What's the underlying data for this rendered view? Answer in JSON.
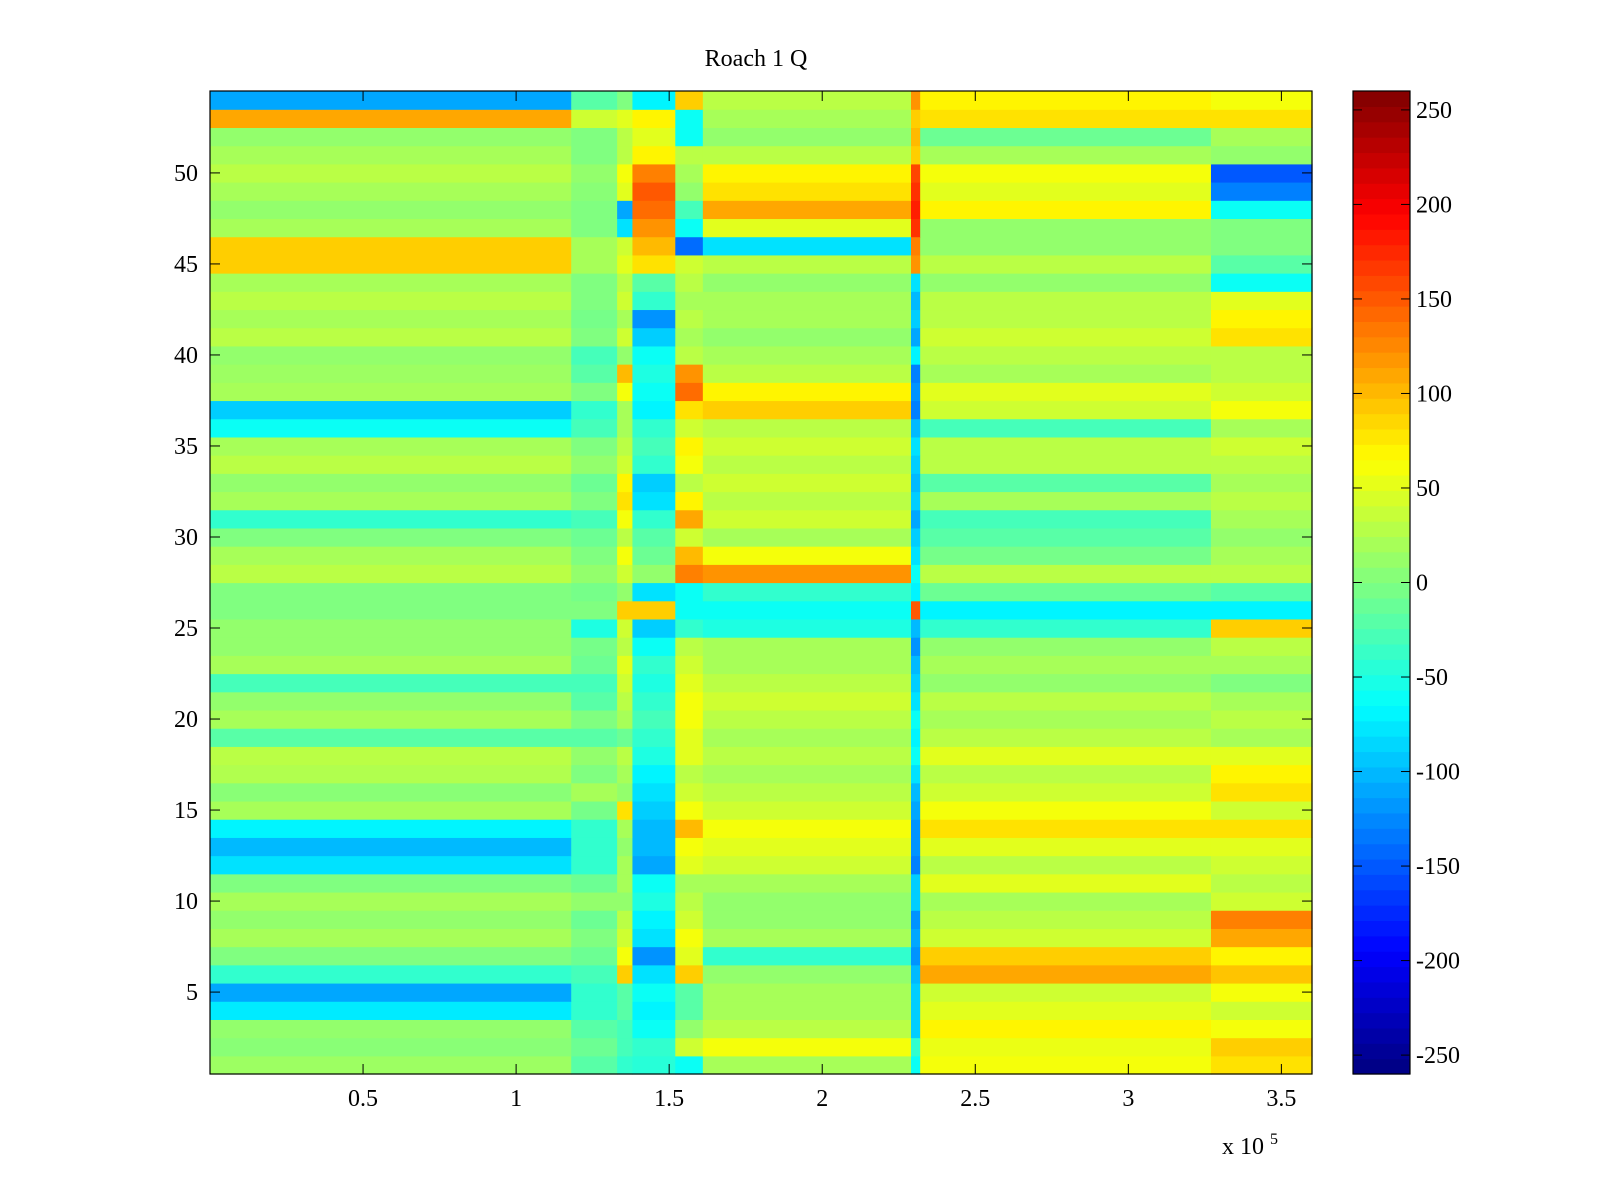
{
  "chart_data": {
    "type": "heatmap",
    "title": "Roach 1 Q",
    "xlabel": "",
    "ylabel": "",
    "colormap": "jet",
    "xlim": [
      0,
      360000
    ],
    "ylim": [
      0.5,
      54.5
    ],
    "rows": 54,
    "x_exponent_label": "x 10",
    "x_exponent_power": "5",
    "x_ticks": [
      {
        "value": 50000,
        "label": "0.5"
      },
      {
        "value": 100000,
        "label": "1"
      },
      {
        "value": 150000,
        "label": "1.5"
      },
      {
        "value": 200000,
        "label": "2"
      },
      {
        "value": 250000,
        "label": "2.5"
      },
      {
        "value": 300000,
        "label": "3"
      },
      {
        "value": 350000,
        "label": "3.5"
      }
    ],
    "y_ticks": [
      {
        "value": 5,
        "label": "5"
      },
      {
        "value": 10,
        "label": "10"
      },
      {
        "value": 15,
        "label": "15"
      },
      {
        "value": 20,
        "label": "20"
      },
      {
        "value": 25,
        "label": "25"
      },
      {
        "value": 30,
        "label": "30"
      },
      {
        "value": 35,
        "label": "35"
      },
      {
        "value": 40,
        "label": "40"
      },
      {
        "value": 45,
        "label": "45"
      },
      {
        "value": 50,
        "label": "50"
      }
    ],
    "colorbar": {
      "clim": [
        -260,
        260
      ],
      "ticks": [
        {
          "value": 250,
          "label": "250"
        },
        {
          "value": 200,
          "label": "200"
        },
        {
          "value": 150,
          "label": "150"
        },
        {
          "value": 100,
          "label": "100"
        },
        {
          "value": 50,
          "label": "50"
        },
        {
          "value": 0,
          "label": "0"
        },
        {
          "value": -50,
          "label": "-50"
        },
        {
          "value": -100,
          "label": "-100"
        },
        {
          "value": -150,
          "label": "-150"
        },
        {
          "value": -200,
          "label": "-200"
        },
        {
          "value": -250,
          "label": "-250"
        }
      ]
    },
    "x_segments": [
      0,
      118000,
      133000,
      138000,
      152000,
      161000,
      229000,
      232000,
      327000,
      360000
    ],
    "segment_values": [
      [
        15,
        -20,
        -40,
        -45,
        -60,
        20,
        -60,
        60,
        80
      ],
      [
        5,
        -10,
        -30,
        -40,
        40,
        60,
        -40,
        55,
        90
      ],
      [
        10,
        -20,
        -30,
        -60,
        10,
        30,
        -90,
        70,
        60
      ],
      [
        -75,
        -40,
        -20,
        -70,
        -20,
        20,
        -90,
        50,
        40
      ],
      [
        -110,
        -40,
        -20,
        -60,
        -20,
        20,
        -90,
        40,
        60
      ],
      [
        -40,
        -30,
        90,
        -80,
        90,
        10,
        -100,
        110,
        95
      ],
      [
        0,
        -10,
        60,
        -120,
        50,
        -40,
        -120,
        90,
        70
      ],
      [
        20,
        0,
        40,
        -80,
        60,
        20,
        -110,
        40,
        110
      ],
      [
        10,
        -10,
        30,
        -70,
        40,
        10,
        -120,
        30,
        130
      ],
      [
        20,
        10,
        10,
        -50,
        30,
        10,
        -90,
        20,
        40
      ],
      [
        0,
        -10,
        20,
        -60,
        20,
        20,
        -90,
        50,
        30
      ],
      [
        -80,
        -40,
        20,
        -110,
        50,
        40,
        -130,
        30,
        40
      ],
      [
        -100,
        -40,
        10,
        -100,
        60,
        50,
        -120,
        50,
        50
      ],
      [
        -70,
        -40,
        20,
        -100,
        100,
        60,
        -120,
        80,
        80
      ],
      [
        20,
        -5,
        80,
        -90,
        60,
        40,
        -110,
        60,
        40
      ],
      [
        5,
        20,
        10,
        -80,
        40,
        30,
        -100,
        40,
        80
      ],
      [
        25,
        0,
        20,
        -70,
        30,
        20,
        -80,
        30,
        70
      ],
      [
        30,
        10,
        30,
        -50,
        50,
        30,
        -60,
        50,
        50
      ],
      [
        -20,
        -20,
        -10,
        -40,
        50,
        20,
        -70,
        30,
        20
      ],
      [
        20,
        0,
        20,
        -30,
        60,
        30,
        -60,
        20,
        30
      ],
      [
        10,
        -20,
        30,
        -40,
        60,
        40,
        -80,
        30,
        20
      ],
      [
        -30,
        -30,
        40,
        -50,
        50,
        30,
        -90,
        10,
        0
      ],
      [
        20,
        -10,
        50,
        -40,
        40,
        20,
        -100,
        20,
        20
      ],
      [
        10,
        -5,
        30,
        -60,
        30,
        20,
        -120,
        10,
        30
      ],
      [
        10,
        -50,
        40,
        -90,
        -40,
        -50,
        -100,
        -40,
        90
      ],
      [
        0,
        0,
        90,
        90,
        -60,
        -60,
        150,
        -70,
        -70
      ],
      [
        0,
        -5,
        10,
        -80,
        -60,
        -40,
        -70,
        -10,
        -20
      ],
      [
        30,
        10,
        40,
        10,
        130,
        120,
        -60,
        30,
        30
      ],
      [
        20,
        0,
        60,
        -10,
        100,
        60,
        -80,
        -5,
        20
      ],
      [
        0,
        -10,
        30,
        -20,
        40,
        20,
        -90,
        -20,
        10
      ],
      [
        -40,
        -30,
        60,
        -40,
        110,
        40,
        -110,
        -30,
        20
      ],
      [
        20,
        0,
        80,
        -80,
        70,
        30,
        -90,
        20,
        30
      ],
      [
        10,
        -10,
        70,
        -90,
        30,
        40,
        -100,
        -20,
        20
      ],
      [
        30,
        10,
        40,
        -40,
        60,
        30,
        -90,
        30,
        30
      ],
      [
        20,
        0,
        30,
        -30,
        70,
        40,
        -80,
        30,
        40
      ],
      [
        -60,
        -30,
        20,
        -40,
        40,
        30,
        -100,
        -30,
        20
      ],
      [
        -90,
        -40,
        20,
        -70,
        80,
        90,
        -130,
        40,
        60
      ],
      [
        20,
        0,
        60,
        -60,
        140,
        70,
        -120,
        50,
        40
      ],
      [
        15,
        -20,
        100,
        -50,
        120,
        30,
        -130,
        20,
        30
      ],
      [
        10,
        -30,
        10,
        -60,
        30,
        20,
        -70,
        30,
        30
      ],
      [
        30,
        0,
        40,
        -90,
        20,
        10,
        -110,
        40,
        80
      ],
      [
        20,
        -5,
        20,
        -120,
        30,
        20,
        -90,
        30,
        70
      ],
      [
        30,
        0,
        40,
        -40,
        20,
        20,
        -100,
        30,
        50
      ],
      [
        20,
        0,
        30,
        -20,
        30,
        10,
        -80,
        10,
        -60
      ],
      [
        90,
        20,
        50,
        80,
        40,
        30,
        120,
        30,
        -20
      ],
      [
        90,
        20,
        40,
        100,
        -140,
        -80,
        130,
        10,
        0
      ],
      [
        20,
        0,
        -80,
        120,
        -60,
        50,
        170,
        10,
        0
      ],
      [
        10,
        0,
        -110,
        140,
        -30,
        110,
        180,
        70,
        -60
      ],
      [
        20,
        5,
        50,
        150,
        10,
        80,
        170,
        50,
        -130
      ],
      [
        30,
        10,
        60,
        130,
        20,
        70,
        160,
        60,
        -150
      ],
      [
        20,
        0,
        30,
        70,
        30,
        30,
        90,
        20,
        10
      ],
      [
        10,
        0,
        30,
        50,
        -60,
        10,
        100,
        -10,
        20
      ],
      [
        110,
        40,
        50,
        70,
        -60,
        20,
        90,
        80,
        80
      ],
      [
        -110,
        -20,
        0,
        -70,
        90,
        30,
        120,
        70,
        60
      ]
    ]
  }
}
